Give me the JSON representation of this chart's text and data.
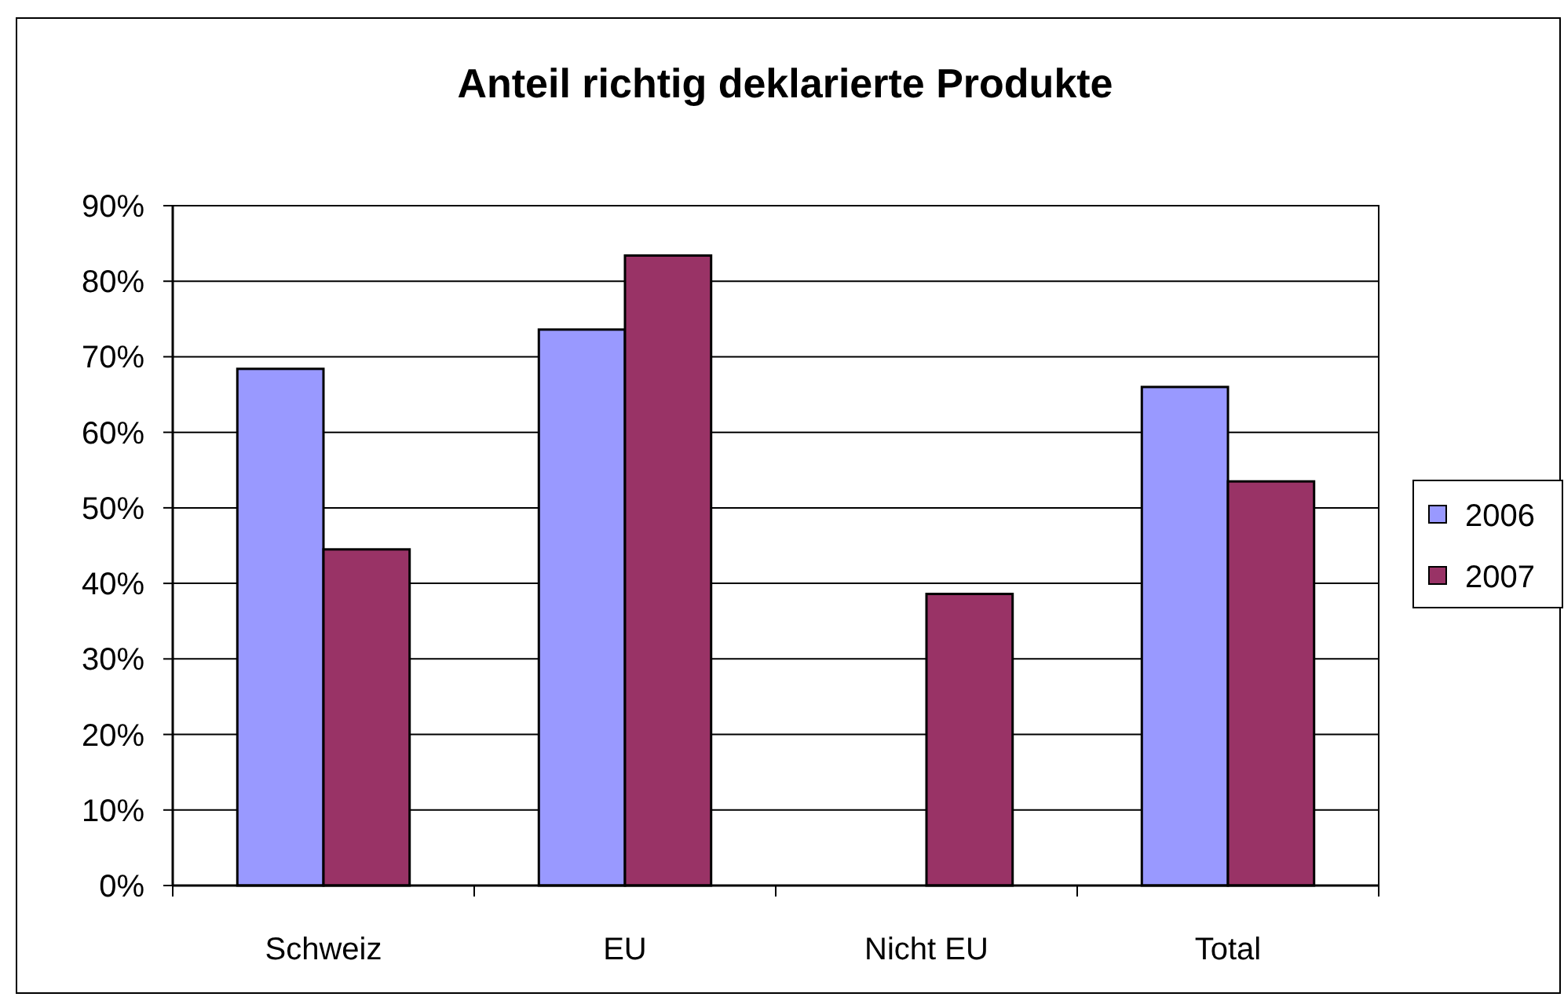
{
  "chart_data": {
    "type": "bar",
    "title": "Anteil richtig deklarierte Produkte",
    "categories": [
      "Schweiz",
      "EU",
      "Nicht EU",
      "Total"
    ],
    "series": [
      {
        "name": "2006",
        "color": "#9999ff",
        "values": [
          68.4,
          73.6,
          null,
          66.0
        ]
      },
      {
        "name": "2007",
        "color": "#993366",
        "values": [
          44.5,
          83.4,
          38.6,
          53.5
        ]
      }
    ],
    "ylim": [
      0,
      90
    ],
    "yticks": [
      {
        "value": 0,
        "label": "0%"
      },
      {
        "value": 10,
        "label": "10%"
      },
      {
        "value": 20,
        "label": "20%"
      },
      {
        "value": 30,
        "label": "30%"
      },
      {
        "value": 40,
        "label": "40%"
      },
      {
        "value": 50,
        "label": "50%"
      },
      {
        "value": 60,
        "label": "60%"
      },
      {
        "value": 70,
        "label": "70%"
      },
      {
        "value": 80,
        "label": "80%"
      },
      {
        "value": 90,
        "label": "90%"
      }
    ],
    "grid": "y",
    "legend": "right"
  }
}
